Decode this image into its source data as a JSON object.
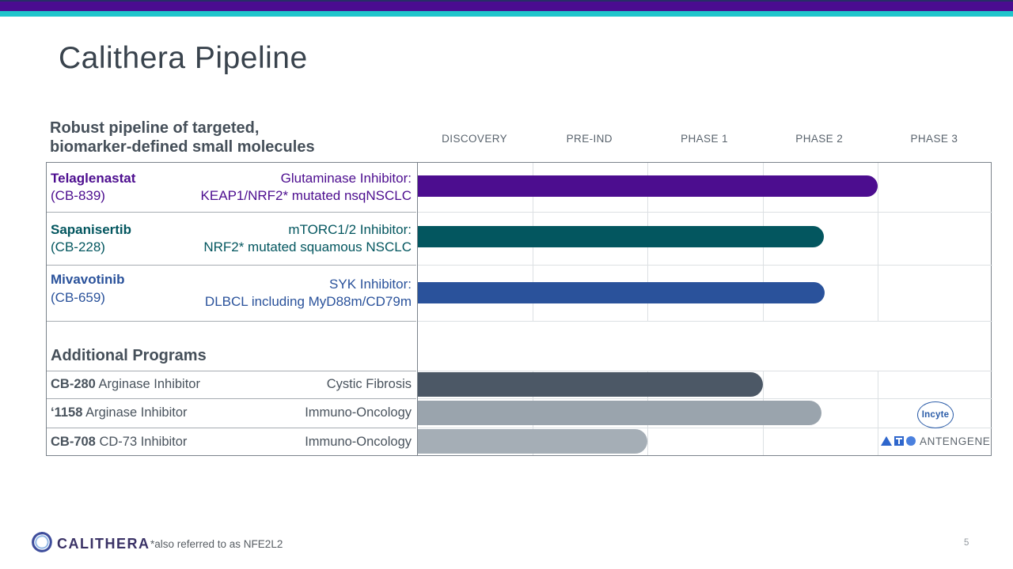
{
  "slide": {
    "title": "Calithera Pipeline",
    "page_number": "5",
    "footnote": "*also referred to as NFE2L2",
    "brand_name": "CALITHERA"
  },
  "header": {
    "heading_line1": "Robust pipeline of targeted,",
    "heading_line2": "biomarker-defined small molecules"
  },
  "chart_data": {
    "type": "bar",
    "title": "Robust pipeline of targeted, biomarker-defined small molecules",
    "categories": [
      "DISCOVERY",
      "PRE-IND",
      "PHASE 1",
      "PHASE 2",
      "PHASE 3"
    ],
    "phase_count": 5,
    "value_scale": "phases spanned (0 = start of Discovery, 5 = end of Phase 3)",
    "lead_programs": [
      {
        "name": "Telaglenastat",
        "code": "(CB-839)",
        "desc_line1": "Glutaminase Inhibitor:",
        "desc_line2": "KEAP1/NRF2* mutated nsqNSCLC",
        "value": 4.0,
        "color": "#4c0d8f"
      },
      {
        "name": "Sapanisertib",
        "code": "(CB-228)",
        "desc_line1": "mTORC1/2 Inhibitor:",
        "desc_line2": "NRF2* mutated squamous NSCLC",
        "value": 3.53,
        "color": "#03565f"
      },
      {
        "name": "Mivavotinib",
        "code": "(CB-659)",
        "desc_line1": "SYK Inhibitor:",
        "desc_line2": "DLBCL including MyD88m/CD79m",
        "value": 3.54,
        "color": "#2a529b"
      }
    ],
    "additional_header": "Additional Programs",
    "additional_programs": [
      {
        "code": "CB-280",
        "modality": "Arginase Inhibitor",
        "indication": "Cystic Fibrosis",
        "value": 3.0,
        "color": "#4c5866",
        "partner": ""
      },
      {
        "code": "‘1158",
        "modality": "Arginase Inhibitor",
        "indication": "Immuno-Oncology",
        "value": 3.51,
        "color": "#9aa4ad",
        "partner": "Incyte"
      },
      {
        "code": "CB-708",
        "modality": "CD-73 Inhibitor",
        "indication": "Immuno-Oncology",
        "value": 2.0,
        "color": "#a5aeb6",
        "partner": "ANTENGENE"
      }
    ]
  },
  "colors": {
    "top_bar_navy": "#272d66",
    "top_bar_purple": "#4a0c90",
    "top_bar_teal": "#20c5cb",
    "incyte_blue": "#2b5ca8",
    "antengene_blue": "#2e66cc",
    "brand_purple": "#3a3266"
  }
}
